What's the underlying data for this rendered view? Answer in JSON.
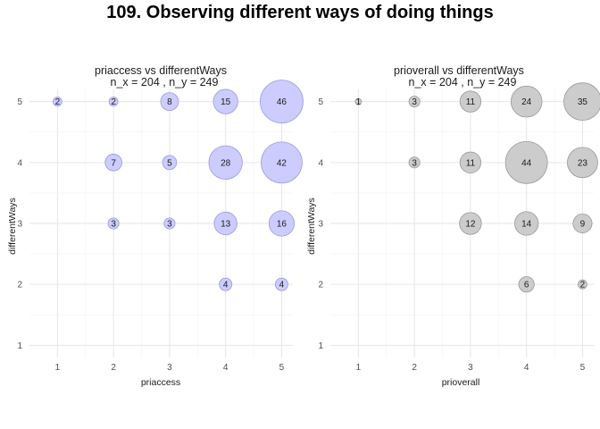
{
  "page_title": "109. Observing different ways of doing things",
  "chart_data": [
    {
      "type": "scatter",
      "title": "priaccess vs differentWays",
      "subtitle": "n_x = 204 , n_y = 249",
      "xlabel": "priaccess",
      "ylabel": "differentWays",
      "x_ticks": [
        "1",
        "2",
        "3",
        "4",
        "5"
      ],
      "y_ticks": [
        "1",
        "2",
        "3",
        "4",
        "5"
      ],
      "xlim": [
        0.5,
        5.2
      ],
      "ylim": [
        0.8,
        5.2
      ],
      "fill_color": "#ccccff",
      "stroke_color": "#9999dd",
      "grid": true,
      "points": [
        {
          "x": 1,
          "y": 5,
          "n": 2
        },
        {
          "x": 2,
          "y": 5,
          "n": 2
        },
        {
          "x": 3,
          "y": 5,
          "n": 8
        },
        {
          "x": 4,
          "y": 5,
          "n": 15
        },
        {
          "x": 5,
          "y": 5,
          "n": 46
        },
        {
          "x": 2,
          "y": 4,
          "n": 7
        },
        {
          "x": 3,
          "y": 4,
          "n": 5
        },
        {
          "x": 4,
          "y": 4,
          "n": 28
        },
        {
          "x": 5,
          "y": 4,
          "n": 42
        },
        {
          "x": 2,
          "y": 3,
          "n": 3
        },
        {
          "x": 3,
          "y": 3,
          "n": 3
        },
        {
          "x": 4,
          "y": 3,
          "n": 13
        },
        {
          "x": 5,
          "y": 3,
          "n": 16
        },
        {
          "x": 4,
          "y": 2,
          "n": 4
        },
        {
          "x": 5,
          "y": 2,
          "n": 4
        }
      ]
    },
    {
      "type": "scatter",
      "title": "prioverall vs differentWays",
      "subtitle": "n_x = 204 , n_y = 249",
      "xlabel": "prioverall",
      "ylabel": "differentWays",
      "x_ticks": [
        "1",
        "2",
        "3",
        "4",
        "5"
      ],
      "y_ticks": [
        "1",
        "2",
        "3",
        "4",
        "5"
      ],
      "xlim": [
        0.5,
        5.2
      ],
      "ylim": [
        0.8,
        5.2
      ],
      "fill_color": "#cccccc",
      "stroke_color": "#999999",
      "grid": true,
      "points": [
        {
          "x": 1,
          "y": 5,
          "n": 1
        },
        {
          "x": 2,
          "y": 5,
          "n": 3
        },
        {
          "x": 3,
          "y": 5,
          "n": 11
        },
        {
          "x": 4,
          "y": 5,
          "n": 24
        },
        {
          "x": 5,
          "y": 5,
          "n": 35
        },
        {
          "x": 2,
          "y": 4,
          "n": 3
        },
        {
          "x": 3,
          "y": 4,
          "n": 11
        },
        {
          "x": 4,
          "y": 4,
          "n": 44
        },
        {
          "x": 5,
          "y": 4,
          "n": 23
        },
        {
          "x": 3,
          "y": 3,
          "n": 12
        },
        {
          "x": 4,
          "y": 3,
          "n": 14
        },
        {
          "x": 5,
          "y": 3,
          "n": 9
        },
        {
          "x": 4,
          "y": 2,
          "n": 6
        },
        {
          "x": 5,
          "y": 2,
          "n": 2
        }
      ]
    }
  ]
}
